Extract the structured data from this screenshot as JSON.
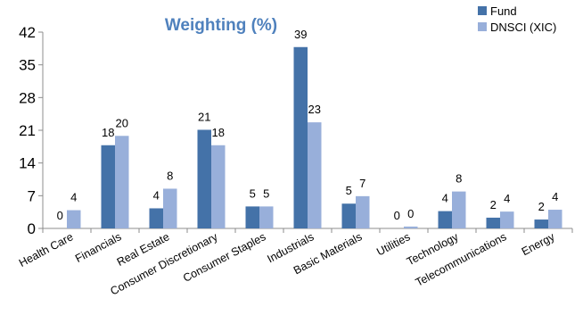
{
  "chart_data": {
    "type": "bar",
    "title": "Weighting (%)",
    "xlabel": "",
    "ylabel": "",
    "categories": [
      "Health Care",
      "Financials",
      "Real Estate",
      "Consumer Discretionary",
      "Consumer Staples",
      "Industrials",
      "Basic Materials",
      "Utilities",
      "Technology",
      "Telecommunications",
      "Energy"
    ],
    "series": [
      {
        "name": "Fund",
        "color": "#4472A8",
        "values": [
          0,
          17.8,
          4.3,
          21.1,
          4.7,
          38.8,
          5.3,
          0,
          3.7,
          2.3,
          1.9
        ],
        "labels": [
          "0",
          "18",
          "4",
          "21",
          "5",
          "39",
          "5",
          "0",
          "4",
          "2",
          "2"
        ]
      },
      {
        "name": "DNSCI (XIC)",
        "color": "#98AFDA",
        "values": [
          3.9,
          19.8,
          8.5,
          17.8,
          4.7,
          22.7,
          6.9,
          0.4,
          7.9,
          3.6,
          4.0
        ],
        "labels": [
          "4",
          "20",
          "8",
          "18",
          "5",
          "23",
          "7",
          "0",
          "8",
          "4",
          "4"
        ]
      }
    ],
    "ylim": [
      0,
      42
    ],
    "yticks": [
      0,
      7,
      14,
      21,
      28,
      35,
      42
    ],
    "grid": false,
    "legend": "top-right",
    "title_color": "#4F81BD",
    "axis_color": "#8C8C8C"
  }
}
